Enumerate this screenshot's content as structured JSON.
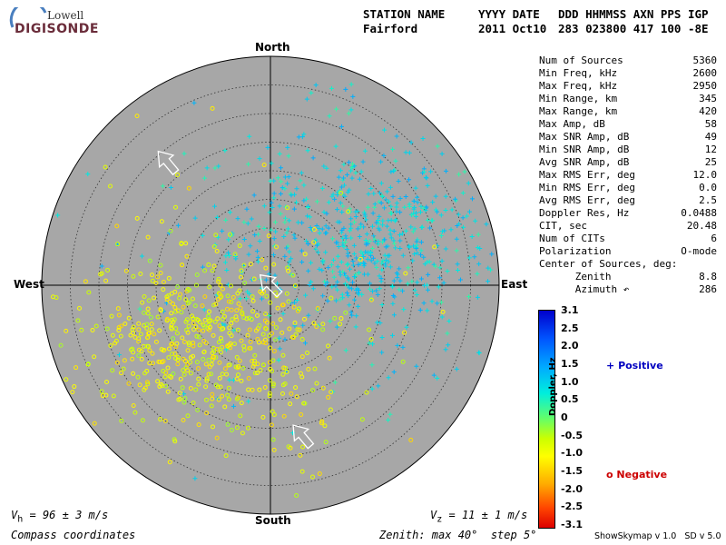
{
  "logo": {
    "line1": "Lowell",
    "line2": "DIGISONDE"
  },
  "header": {
    "station_label": "STATION NAME",
    "date_label": "YYYY DATE",
    "time_label": "DDD HHMMSS AXN PPS IGP",
    "station_value": "Fairford",
    "date_value": "2011 Oct10",
    "time_value": "283 023800 417 100 -8E"
  },
  "directions": {
    "north": "North",
    "south": "South",
    "east": "East",
    "west": "West"
  },
  "stats": [
    {
      "label": "Num of Sources",
      "value": "5360"
    },
    {
      "label": "Min Freq, kHz",
      "value": "2600"
    },
    {
      "label": "Max Freq, kHz",
      "value": "2950"
    },
    {
      "label": "Min Range, km",
      "value": "345"
    },
    {
      "label": "Max Range, km",
      "value": "420"
    },
    {
      "label": "Max Amp, dB",
      "value": "58"
    },
    {
      "label": "Max SNR Amp, dB",
      "value": "49"
    },
    {
      "label": "Min SNR Amp, dB",
      "value": "12"
    },
    {
      "label": "Avg SNR Amp, dB",
      "value": "25"
    },
    {
      "label": "Max RMS Err, deg",
      "value": "12.0"
    },
    {
      "label": "Min RMS Err, deg",
      "value": "0.0"
    },
    {
      "label": "Avg RMS Err, deg",
      "value": "2.5"
    },
    {
      "label": "Doppler Res, Hz",
      "value": "0.0488"
    },
    {
      "label": "CIT, sec",
      "value": "20.48"
    },
    {
      "label": "Num of CITs",
      "value": "6"
    },
    {
      "label": "Polarization",
      "value": "O-mode"
    },
    {
      "label": "Center of Sources, deg:",
      "value": ""
    },
    {
      "label": "      Zenith",
      "value": "8.8"
    },
    {
      "label": "      Azimuth ↶",
      "value": "286"
    }
  ],
  "velocity": {
    "vh_sym": "V",
    "vh_sub": "h",
    "vh_text": " = 96 ± 3 m/s",
    "vz_sym": "V",
    "vz_sub": "z",
    "vz_text": " = 11 ± 1 m/s"
  },
  "footer": {
    "compass": "Compass coordinates",
    "zenith": "Zenith: max 40°  step 5°",
    "version": "ShowSkymap v 1.0   SD v 5.0"
  },
  "colorbar": {
    "label": "Doppler, Hz",
    "ticks": [
      "3.1",
      "2.5",
      "2.0",
      "1.5",
      "1.0",
      "0.5",
      "0",
      "-0.5",
      "-1.0",
      "-1.5",
      "-2.0",
      "-2.5",
      "-3.1"
    ],
    "range": [
      -3.1,
      3.1
    ]
  },
  "legend": {
    "positive": "Positive",
    "negative": "Negative",
    "positive_symbol": "+",
    "negative_symbol": "o"
  },
  "colors": {
    "disk": "#a7a7a7",
    "positive_text": "#0000c0",
    "negative_text": "#cc0000"
  },
  "chart_data": {
    "type": "scatter",
    "projection": "polar skymap",
    "zenith_max_deg": 40,
    "zenith_step_deg": 5,
    "num_sources": 5360,
    "clusters": [
      {
        "name": "Positive",
        "symbol": "+",
        "center_zenith_deg": 18,
        "center_azimuth_deg": 62,
        "doppler_hz": [
          0.3,
          1.5
        ]
      },
      {
        "name": "Negative",
        "symbol": "o",
        "center_zenith_deg": 15,
        "center_azimuth_deg": 228,
        "doppler_hz": [
          -0.9,
          -0.1
        ]
      }
    ],
    "arrows": [
      {
        "zenith_deg": 0,
        "azimuth_deg": 0
      },
      {
        "zenith_deg": 28,
        "azimuth_deg": 320
      },
      {
        "zenith_deg": 27,
        "azimuth_deg": 168
      }
    ]
  }
}
